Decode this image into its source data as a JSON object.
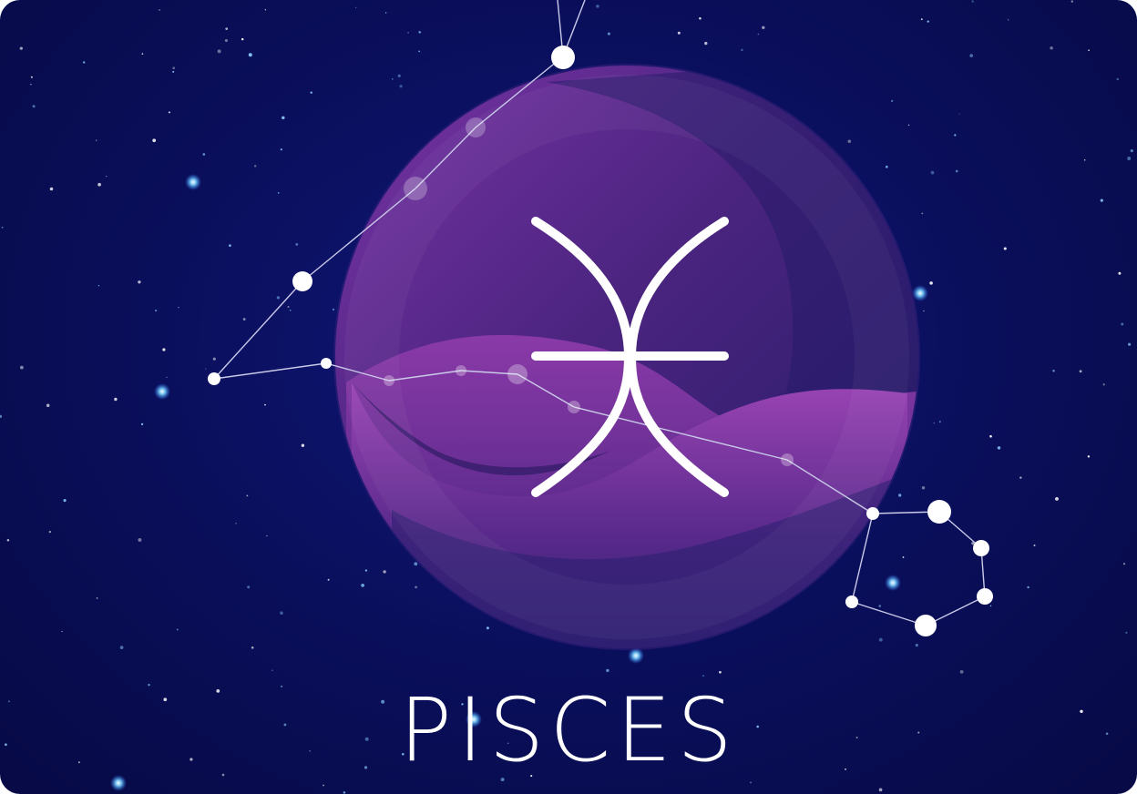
{
  "sign": {
    "name": "PISCES",
    "symbol_icon": "pisces-glyph-icon"
  },
  "colors": {
    "background": "#0a0f5e",
    "planet_purple": "#6a2a96",
    "planet_dark": "#2d1d6e",
    "constellation_line": "#c9c9e8",
    "star_white": "#ffffff",
    "text": "#ffffff"
  }
}
